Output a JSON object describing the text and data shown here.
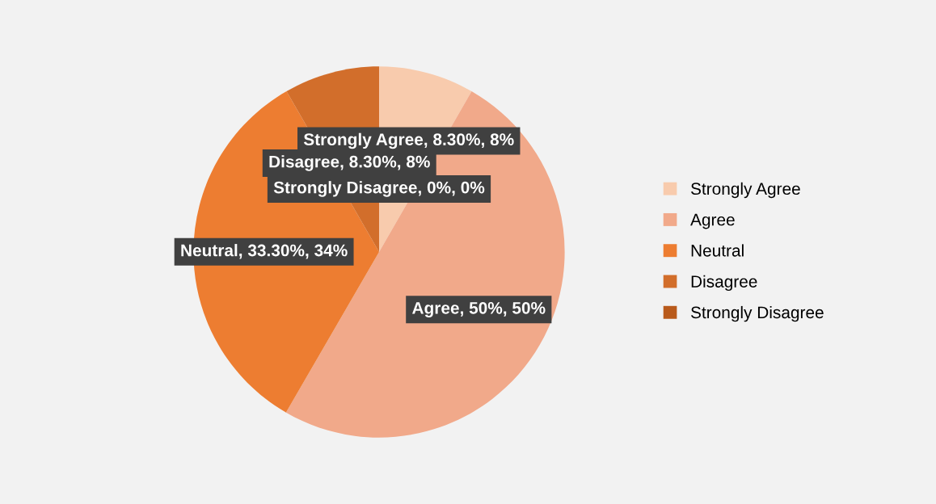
{
  "chart_data": {
    "type": "pie",
    "categories": [
      "Strongly Agree",
      "Agree",
      "Neutral",
      "Disagree",
      "Strongly Disagree"
    ],
    "values": [
      8.3,
      50,
      33.3,
      8.3,
      0
    ],
    "value_labels": [
      "Strongly Agree, 8.30%, 8%",
      "Agree, 50%, 50%",
      "Neutral, 33.30%, 34%",
      "Disagree, 8.30%, 8%",
      "Strongly Disagree, 0%, 0%"
    ],
    "colors": [
      "#f8cbad",
      "#f1a98a",
      "#ed7d31",
      "#d26e2b",
      "#b95a1b"
    ],
    "legend": "right"
  }
}
